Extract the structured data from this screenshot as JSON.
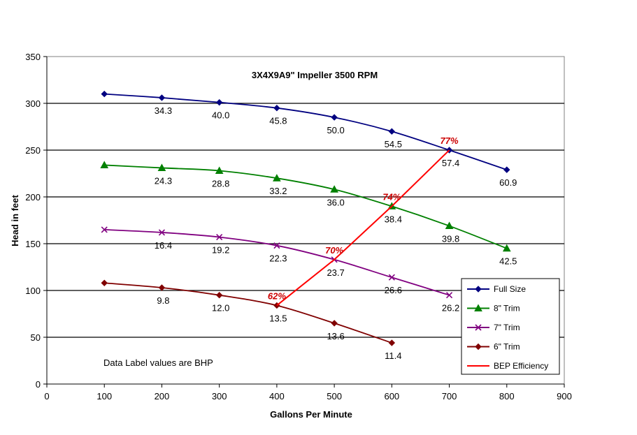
{
  "chart_data": {
    "type": "line",
    "title": "3X4X9A9\" Impeller 3500 RPM",
    "xlabel": "Gallons Per Minute",
    "ylabel": "Head in feet",
    "xlim": [
      0,
      900
    ],
    "ylim": [
      0,
      350
    ],
    "xticks": [
      0,
      100,
      200,
      300,
      400,
      500,
      600,
      700,
      800,
      900
    ],
    "yticks": [
      0,
      50,
      100,
      150,
      200,
      250,
      300,
      350
    ],
    "grid": "horizontal",
    "legend": "bottom-right",
    "annotation": "Data Label values are BHP",
    "series": [
      {
        "name": "Full Size",
        "color": "#000080",
        "marker": "diamond",
        "x": [
          100,
          200,
          300,
          400,
          500,
          600,
          700,
          800
        ],
        "y": [
          310,
          306,
          301,
          295,
          285,
          270,
          250,
          229
        ],
        "labels": [
          "",
          "34.3",
          "40.0",
          "45.8",
          "50.0",
          "54.5",
          "57.4",
          "60.9"
        ]
      },
      {
        "name": "8\" Trim",
        "color": "#008000",
        "marker": "triangle",
        "x": [
          100,
          200,
          300,
          400,
          500,
          600,
          700,
          800
        ],
        "y": [
          234,
          231,
          228,
          220,
          208,
          190,
          169,
          145
        ],
        "labels": [
          "",
          "24.3",
          "28.8",
          "33.2",
          "36.0",
          "38.4",
          "39.8",
          "42.5"
        ]
      },
      {
        "name": "7\" Trim",
        "color": "#800080",
        "marker": "x",
        "x": [
          100,
          200,
          300,
          400,
          500,
          600,
          700
        ],
        "y": [
          165,
          162,
          157,
          148,
          133,
          114,
          95
        ],
        "labels": [
          "",
          "16.4",
          "19.2",
          "22.3",
          "23.7",
          "26.6",
          "26.2"
        ]
      },
      {
        "name": "6\" Trim",
        "color": "#800000",
        "marker": "diamond",
        "x": [
          100,
          200,
          300,
          400,
          500,
          600
        ],
        "y": [
          108,
          103,
          95,
          84,
          65,
          44
        ],
        "labels": [
          "",
          "9.8",
          "12.0",
          "13.5",
          "13.6",
          "11.4"
        ]
      },
      {
        "name": "BEP Efficiency",
        "color": "#ff0000",
        "marker": "none",
        "x": [
          400,
          500,
          600,
          700
        ],
        "y": [
          84,
          133,
          190,
          250
        ],
        "labels": [
          "62%",
          "70%",
          "74%",
          "77%"
        ]
      }
    ]
  }
}
